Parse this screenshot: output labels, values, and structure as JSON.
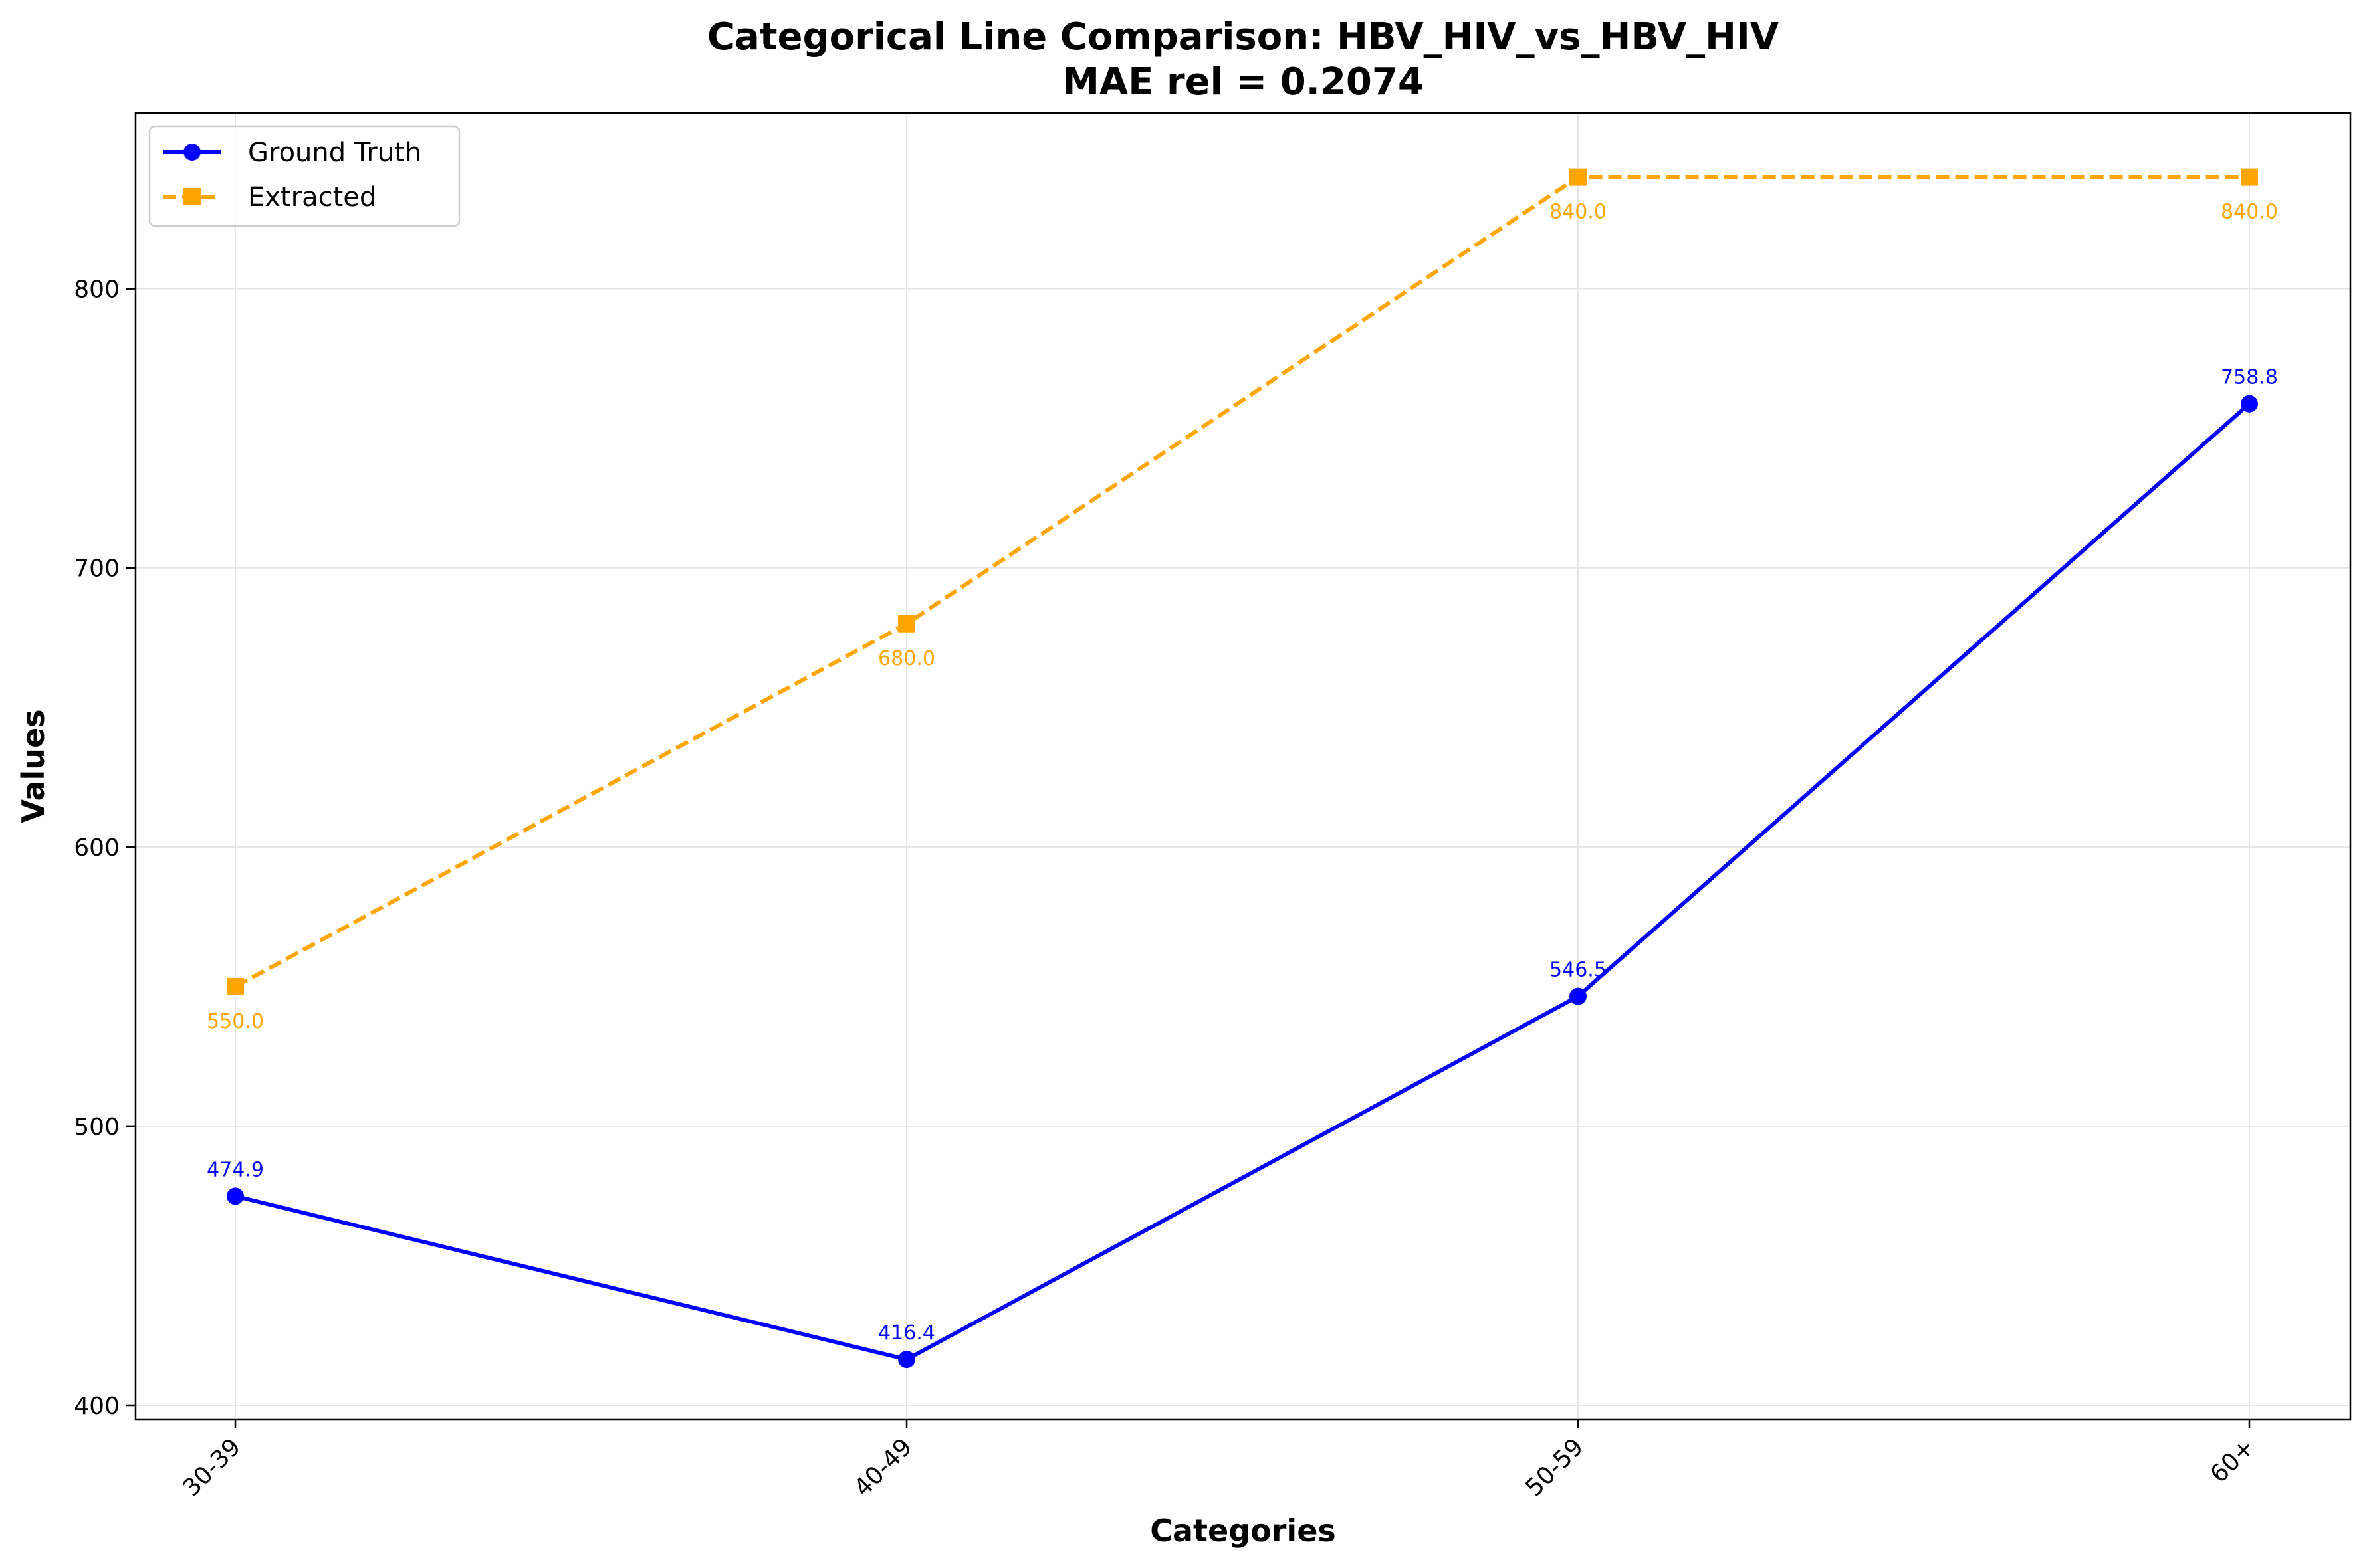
{
  "chart_data": {
    "type": "line",
    "title": "Categorical Line Comparison: HBV_HIV_vs_HBV_HIV",
    "subtitle": "MAE rel = 0.2074",
    "xlabel": "Categories",
    "ylabel": "Values",
    "categories": [
      "30-39",
      "40-49",
      "50-59",
      "60+"
    ],
    "ylim": [
      395,
      863
    ],
    "yticks": [
      400,
      500,
      600,
      700,
      800
    ],
    "grid": true,
    "legend_position": "top-left",
    "series": [
      {
        "name": "Ground Truth",
        "values": [
          474.9,
          416.4,
          546.5,
          758.8
        ],
        "labels": [
          "474.9",
          "416.4",
          "546.5",
          "758.8"
        ],
        "color": "#0000ff",
        "line_style": "solid",
        "marker": "circle"
      },
      {
        "name": "Extracted",
        "values": [
          550.0,
          680.0,
          840.0,
          840.0
        ],
        "labels": [
          "550.0",
          "680.0",
          "840.0",
          "840.0"
        ],
        "color": "#ffa500",
        "line_style": "dashed",
        "marker": "square"
      }
    ]
  }
}
